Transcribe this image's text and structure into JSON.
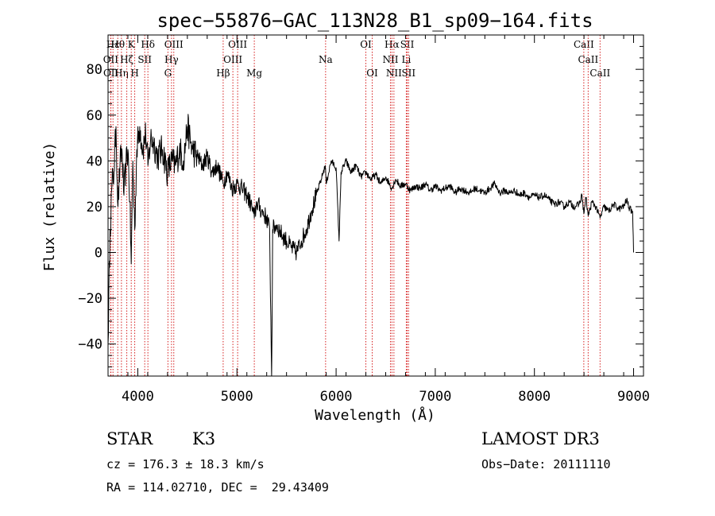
{
  "chart_data": {
    "type": "line",
    "title": "spec−55876−GAC_113N28_B1_sp09−164.fits",
    "xlabel": "Wavelength (Å)",
    "ylabel": "Flux (relative)",
    "xlim": [
      3700,
      9100
    ],
    "ylim": [
      -54,
      95
    ],
    "xticks": [
      {
        "value": 4000,
        "label": "4000"
      },
      {
        "value": 5000,
        "label": "5000"
      },
      {
        "value": 6000,
        "label": "6000"
      },
      {
        "value": 7000,
        "label": "7000"
      },
      {
        "value": 8000,
        "label": "8000"
      },
      {
        "value": 9000,
        "label": "9000"
      }
    ],
    "yticks": [
      {
        "value": -40,
        "label": "−40"
      },
      {
        "value": -20,
        "label": "−20"
      },
      {
        "value": 0,
        "label": "0"
      },
      {
        "value": 20,
        "label": "20"
      },
      {
        "value": 40,
        "label": "40"
      },
      {
        "value": 60,
        "label": "60"
      },
      {
        "value": 80,
        "label": "80"
      }
    ],
    "spectral_lines": [
      {
        "label": "Hε",
        "wavelength": 3750,
        "row": 0
      },
      {
        "label": "OII",
        "wavelength": 3727,
        "row": 1
      },
      {
        "label": "OII",
        "wavelength": 3729,
        "row": 2
      },
      {
        "label": "Hθ",
        "wavelength": 3798,
        "row": 0
      },
      {
        "label": "Hη",
        "wavelength": 3835,
        "row": 2
      },
      {
        "label": "K",
        "wavelength": 3934,
        "row": 0
      },
      {
        "label": "Hζ",
        "wavelength": 3889,
        "row": 1
      },
      {
        "label": "SII",
        "wavelength": 4070,
        "row": 1
      },
      {
        "label": "H",
        "wavelength": 3969,
        "row": 2
      },
      {
        "label": "Hδ",
        "wavelength": 4102,
        "row": 0
      },
      {
        "label": "OIII",
        "wavelength": 4363,
        "row": 0
      },
      {
        "label": "Hγ",
        "wavelength": 4340,
        "row": 1
      },
      {
        "label": "G",
        "wavelength": 4304,
        "row": 2
      },
      {
        "label": "Hβ",
        "wavelength": 4861,
        "row": 2
      },
      {
        "label": "OIII",
        "wavelength": 5007,
        "row": 0
      },
      {
        "label": "OIII",
        "wavelength": 4959,
        "row": 1
      },
      {
        "label": "Mg",
        "wavelength": 5175,
        "row": 2
      },
      {
        "label": "Na",
        "wavelength": 5894,
        "row": 1
      },
      {
        "label": "OI",
        "wavelength": 6300,
        "row": 0
      },
      {
        "label": "OI",
        "wavelength": 6364,
        "row": 2
      },
      {
        "label": "Hα",
        "wavelength": 6563,
        "row": 0
      },
      {
        "label": "NII",
        "wavelength": 6548,
        "row": 1
      },
      {
        "label": "NII",
        "wavelength": 6583,
        "row": 2
      },
      {
        "label": "SII",
        "wavelength": 6717,
        "row": 0
      },
      {
        "label": "Li",
        "wavelength": 6708,
        "row": 1
      },
      {
        "label": "SII",
        "wavelength": 6731,
        "row": 2
      },
      {
        "label": "CaII",
        "wavelength": 8498,
        "row": 0
      },
      {
        "label": "CaII",
        "wavelength": 8542,
        "row": 1
      },
      {
        "label": "CaII",
        "wavelength": 8662,
        "row": 2
      }
    ],
    "spectrum": [
      [
        3700,
        -40
      ],
      [
        3720,
        10
      ],
      [
        3740,
        30
      ],
      [
        3760,
        35
      ],
      [
        3780,
        55
      ],
      [
        3800,
        20
      ],
      [
        3820,
        38
      ],
      [
        3840,
        45
      ],
      [
        3860,
        25
      ],
      [
        3880,
        38
      ],
      [
        3900,
        45
      ],
      [
        3920,
        22
      ],
      [
        3934,
        -5
      ],
      [
        3950,
        40
      ],
      [
        3969,
        10
      ],
      [
        3990,
        45
      ],
      [
        4020,
        55
      ],
      [
        4050,
        45
      ],
      [
        4080,
        52
      ],
      [
        4102,
        38
      ],
      [
        4130,
        50
      ],
      [
        4160,
        48
      ],
      [
        4200,
        42
      ],
      [
        4250,
        45
      ],
      [
        4300,
        35
      ],
      [
        4340,
        40
      ],
      [
        4380,
        38
      ],
      [
        4420,
        45
      ],
      [
        4460,
        40
      ],
      [
        4500,
        55
      ],
      [
        4550,
        45
      ],
      [
        4600,
        42
      ],
      [
        4650,
        38
      ],
      [
        4700,
        42
      ],
      [
        4750,
        35
      ],
      [
        4800,
        38
      ],
      [
        4861,
        30
      ],
      [
        4900,
        35
      ],
      [
        4950,
        28
      ],
      [
        5000,
        30
      ],
      [
        5050,
        28
      ],
      [
        5100,
        25
      ],
      [
        5150,
        20
      ],
      [
        5175,
        15
      ],
      [
        5200,
        22
      ],
      [
        5250,
        18
      ],
      [
        5300,
        15
      ],
      [
        5330,
        10
      ],
      [
        5350,
        -55
      ],
      [
        5360,
        10
      ],
      [
        5400,
        12
      ],
      [
        5450,
        8
      ],
      [
        5500,
        5
      ],
      [
        5550,
        2
      ],
      [
        5600,
        0
      ],
      [
        5650,
        5
      ],
      [
        5700,
        10
      ],
      [
        5750,
        18
      ],
      [
        5800,
        25
      ],
      [
        5850,
        32
      ],
      [
        5890,
        38
      ],
      [
        5900,
        30
      ],
      [
        5950,
        40
      ],
      [
        6000,
        37
      ],
      [
        6030,
        5
      ],
      [
        6050,
        35
      ],
      [
        6100,
        40
      ],
      [
        6150,
        35
      ],
      [
        6200,
        38
      ],
      [
        6250,
        33
      ],
      [
        6300,
        35
      ],
      [
        6350,
        32
      ],
      [
        6400,
        34
      ],
      [
        6450,
        30
      ],
      [
        6500,
        33
      ],
      [
        6563,
        28
      ],
      [
        6600,
        32
      ],
      [
        6650,
        29
      ],
      [
        6700,
        30
      ],
      [
        6750,
        27
      ],
      [
        6800,
        29
      ],
      [
        6850,
        28
      ],
      [
        6900,
        30
      ],
      [
        6950,
        27
      ],
      [
        7000,
        29
      ],
      [
        7050,
        27
      ],
      [
        7100,
        28
      ],
      [
        7150,
        29
      ],
      [
        7200,
        26
      ],
      [
        7250,
        28
      ],
      [
        7300,
        27
      ],
      [
        7350,
        26
      ],
      [
        7400,
        28
      ],
      [
        7450,
        27
      ],
      [
        7500,
        26
      ],
      [
        7550,
        28
      ],
      [
        7600,
        30
      ],
      [
        7650,
        26
      ],
      [
        7700,
        27
      ],
      [
        7750,
        26
      ],
      [
        7800,
        27
      ],
      [
        7850,
        25
      ],
      [
        7900,
        26
      ],
      [
        7950,
        24
      ],
      [
        8000,
        25
      ],
      [
        8050,
        24
      ],
      [
        8100,
        25
      ],
      [
        8150,
        23
      ],
      [
        8200,
        21
      ],
      [
        8250,
        22
      ],
      [
        8300,
        20
      ],
      [
        8350,
        22
      ],
      [
        8400,
        20
      ],
      [
        8450,
        21
      ],
      [
        8480,
        25
      ],
      [
        8498,
        17
      ],
      [
        8520,
        24
      ],
      [
        8542,
        16
      ],
      [
        8580,
        22
      ],
      [
        8620,
        20
      ],
      [
        8662,
        15
      ],
      [
        8700,
        20
      ],
      [
        8750,
        18
      ],
      [
        8800,
        21
      ],
      [
        8850,
        19
      ],
      [
        8900,
        20
      ],
      [
        8930,
        23
      ],
      [
        8960,
        19
      ],
      [
        8990,
        18
      ],
      [
        9000,
        0
      ]
    ]
  },
  "info": {
    "object_class": "STAR",
    "subclass": "K3",
    "survey": "LAMOST DR3",
    "redshift_text": "cz = 176.3 ± 18.3 km/s",
    "obs_date_text": "Obs−Date: 20111110",
    "coords_text": "RA = 114.02710, DEC =  29.43409"
  }
}
